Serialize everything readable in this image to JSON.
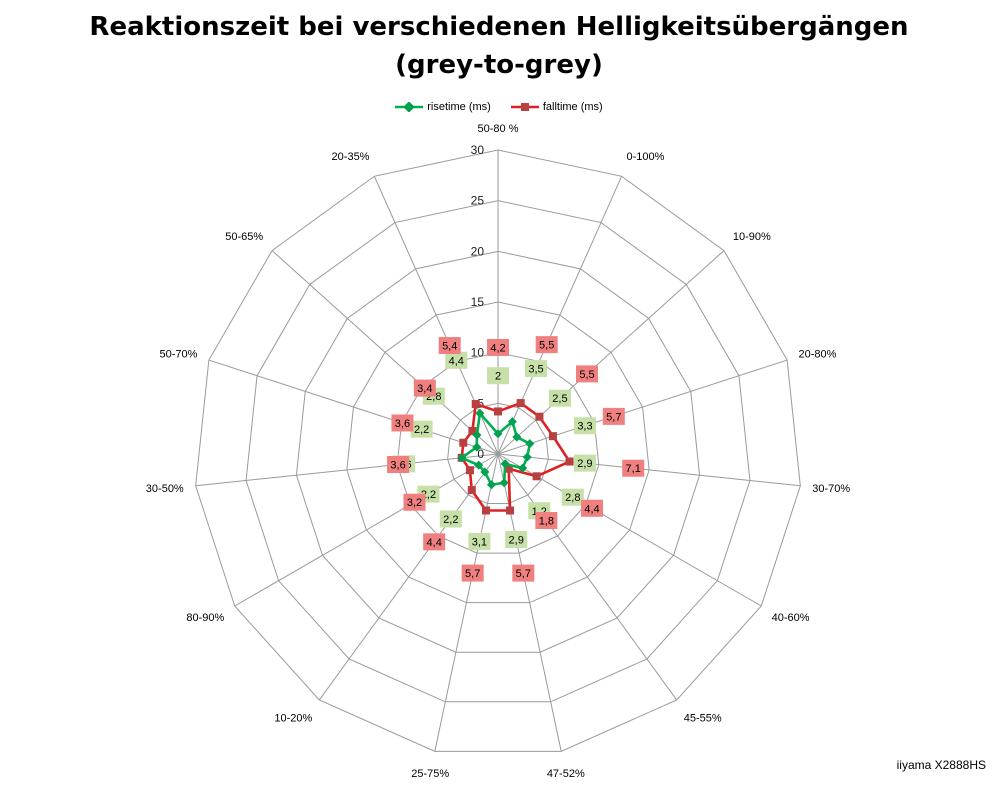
{
  "title": {
    "line1": "Reaktionszeit bei verschiedenen Helligkeitsübergängen",
    "line2": "(grey-to-grey)"
  },
  "watermark": "iiyama X2888HS",
  "colors": {
    "rise": "#00b050",
    "rise_marker": "#00a050",
    "fall": "#e02020",
    "fall_marker": "#b84040",
    "rise_label_bg": "#c6e0a8",
    "fall_label_bg": "#f08080",
    "grid": "#9a9a9a"
  },
  "chart_data": {
    "type": "radar",
    "categories": [
      "50-80 %",
      "0-100%",
      "10-90%",
      "20-80%",
      "30-70%",
      "40-60%",
      "45-55%",
      "47-52%",
      "25-75%",
      "10-20%",
      "80-90%",
      "30-50%",
      "50-70%",
      "50-65%",
      "20-35%"
    ],
    "rlim": [
      0,
      30
    ],
    "ticks": [
      0,
      5,
      10,
      15,
      20,
      25,
      30
    ],
    "grid": true,
    "legend_position": "top",
    "series": [
      {
        "name": "risetime (ms)",
        "values": [
          2,
          3.5,
          2.5,
          3.3,
          2.9,
          2.8,
          1.2,
          2.9,
          3.1,
          2.2,
          2.2,
          3.6,
          2.2,
          2.8,
          4.4
        ]
      },
      {
        "name": "falltime (ms)",
        "values": [
          4.2,
          5.5,
          5.5,
          5.7,
          7.1,
          4.4,
          1.8,
          5.7,
          5.7,
          4.4,
          3.2,
          3.6,
          3.6,
          3.4,
          5.4
        ]
      }
    ],
    "rise_labels": [
      "2",
      "3,5",
      "2,5",
      "3,3",
      "2,9",
      "2,8",
      "1,2",
      "2,9",
      "3,1",
      "2,2",
      "2,2",
      "3,6",
      "2,2",
      "2,8",
      "4,4"
    ],
    "fall_labels": [
      "4,2",
      "5,5",
      "5,5",
      "5,7",
      "7,1",
      "4,4",
      "1,8",
      "5,7",
      "5,7",
      "4,4",
      "3,2",
      "3,6",
      "3,6",
      "3,4",
      "5,4"
    ]
  }
}
